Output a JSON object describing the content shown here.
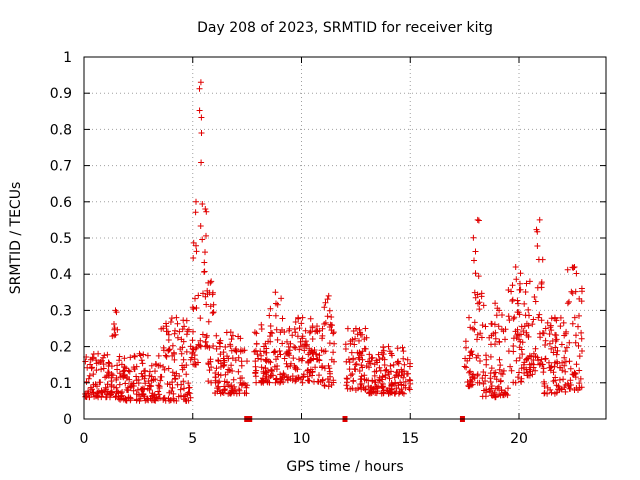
{
  "chart_data": {
    "type": "scatter",
    "title": "Day 208 of 2023, SRMTID for receiver kitg",
    "xlabel": "GPS time / hours",
    "ylabel": "SRMTID / TECUs",
    "xlim": [
      0,
      24
    ],
    "ylim": [
      0,
      1
    ],
    "xticks": [
      "0",
      "5",
      "10",
      "15",
      "20"
    ],
    "yticks": [
      "0",
      "0.1",
      "0.2",
      "0.3",
      "0.4",
      "0.5",
      "0.6",
      "0.7",
      "0.8",
      "0.9",
      "1"
    ],
    "grid": true,
    "marker": "+",
    "color": "#e00000",
    "gap_markers": [
      7.55,
      12.0,
      17.4
    ],
    "envelope": [
      {
        "t0": 0.0,
        "t1": 1.3,
        "lo": 0.06,
        "hi": 0.18
      },
      {
        "t0": 1.3,
        "t1": 1.6,
        "lo": 0.06,
        "hi": 0.3
      },
      {
        "t0": 1.6,
        "t1": 3.5,
        "lo": 0.05,
        "hi": 0.18
      },
      {
        "t0": 3.5,
        "t1": 5.0,
        "lo": 0.05,
        "hi": 0.28
      },
      {
        "t0": 5.0,
        "t1": 5.3,
        "lo": 0.15,
        "hi": 0.6
      },
      {
        "t0": 5.3,
        "t1": 5.45,
        "lo": 0.2,
        "hi": 0.93
      },
      {
        "t0": 5.45,
        "t1": 5.7,
        "lo": 0.2,
        "hi": 0.58
      },
      {
        "t0": 5.7,
        "t1": 6.0,
        "lo": 0.1,
        "hi": 0.38
      },
      {
        "t0": 6.0,
        "t1": 7.5,
        "lo": 0.07,
        "hi": 0.24
      },
      {
        "t0": 7.8,
        "t1": 8.5,
        "lo": 0.1,
        "hi": 0.26
      },
      {
        "t0": 8.5,
        "t1": 9.1,
        "lo": 0.1,
        "hi": 0.35
      },
      {
        "t0": 9.1,
        "t1": 11.0,
        "lo": 0.1,
        "hi": 0.28
      },
      {
        "t0": 11.0,
        "t1": 11.5,
        "lo": 0.09,
        "hi": 0.34
      },
      {
        "t0": 12.0,
        "t1": 13.0,
        "lo": 0.08,
        "hi": 0.25
      },
      {
        "t0": 13.0,
        "t1": 15.0,
        "lo": 0.07,
        "hi": 0.2
      },
      {
        "t0": 17.5,
        "t1": 17.9,
        "lo": 0.09,
        "hi": 0.28
      },
      {
        "t0": 17.9,
        "t1": 18.3,
        "lo": 0.1,
        "hi": 0.55
      },
      {
        "t0": 18.3,
        "t1": 19.5,
        "lo": 0.06,
        "hi": 0.32
      },
      {
        "t0": 19.5,
        "t1": 20.2,
        "lo": 0.1,
        "hi": 0.42
      },
      {
        "t0": 20.2,
        "t1": 20.8,
        "lo": 0.12,
        "hi": 0.38
      },
      {
        "t0": 20.8,
        "t1": 21.1,
        "lo": 0.15,
        "hi": 0.55
      },
      {
        "t0": 21.1,
        "t1": 22.2,
        "lo": 0.07,
        "hi": 0.28
      },
      {
        "t0": 22.2,
        "t1": 22.9,
        "lo": 0.08,
        "hi": 0.42
      }
    ]
  }
}
